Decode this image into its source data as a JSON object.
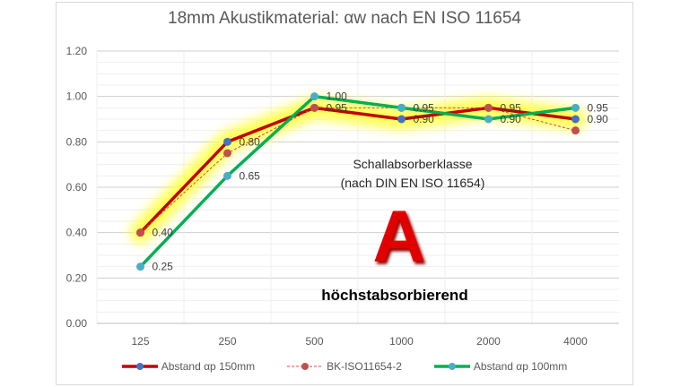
{
  "chart_data": {
    "type": "line",
    "title": "18mm Akustikmaterial: αw nach EN ISO 11654",
    "categories": [
      "125",
      "250",
      "500",
      "1000",
      "2000",
      "4000"
    ],
    "ylim": [
      0,
      1.2
    ],
    "yticks": [
      "0.00",
      "0.20",
      "0.40",
      "0.60",
      "0.80",
      "1.00",
      "1.20"
    ],
    "grid": true,
    "legend_position": "bottom",
    "series": [
      {
        "name": "Abstand αp 150mm",
        "values": [
          0.4,
          0.8,
          0.95,
          0.9,
          0.95,
          0.9
        ],
        "color": "#c00000",
        "marker": "#4472c4",
        "labels": [
          "0.40",
          "0.80",
          "",
          "0.90",
          "",
          "0.90"
        ]
      },
      {
        "name": "BK-ISO11654-2",
        "values": [
          0.4,
          0.75,
          0.95,
          0.95,
          0.95,
          0.85
        ],
        "color": "#e04040",
        "marker": "#c0504d",
        "dashed": true,
        "labels": [
          "",
          "",
          "0.95",
          "",
          "0.95",
          ""
        ]
      },
      {
        "name": "Abstand  αp 100mm",
        "values": [
          0.25,
          0.65,
          1.0,
          0.95,
          0.9,
          0.95
        ],
        "color": "#00b050",
        "marker": "#4bacc6",
        "labels": [
          "0.25",
          "0.65",
          "1.00",
          "0.95",
          "0.90",
          "0.95"
        ]
      }
    ],
    "annotations": {
      "class_title": "Schallabsorberklasse",
      "class_subtitle": "(nach DIN EN ISO 11654)",
      "class": "A",
      "class_desc": "höchstabsorbierend"
    }
  }
}
